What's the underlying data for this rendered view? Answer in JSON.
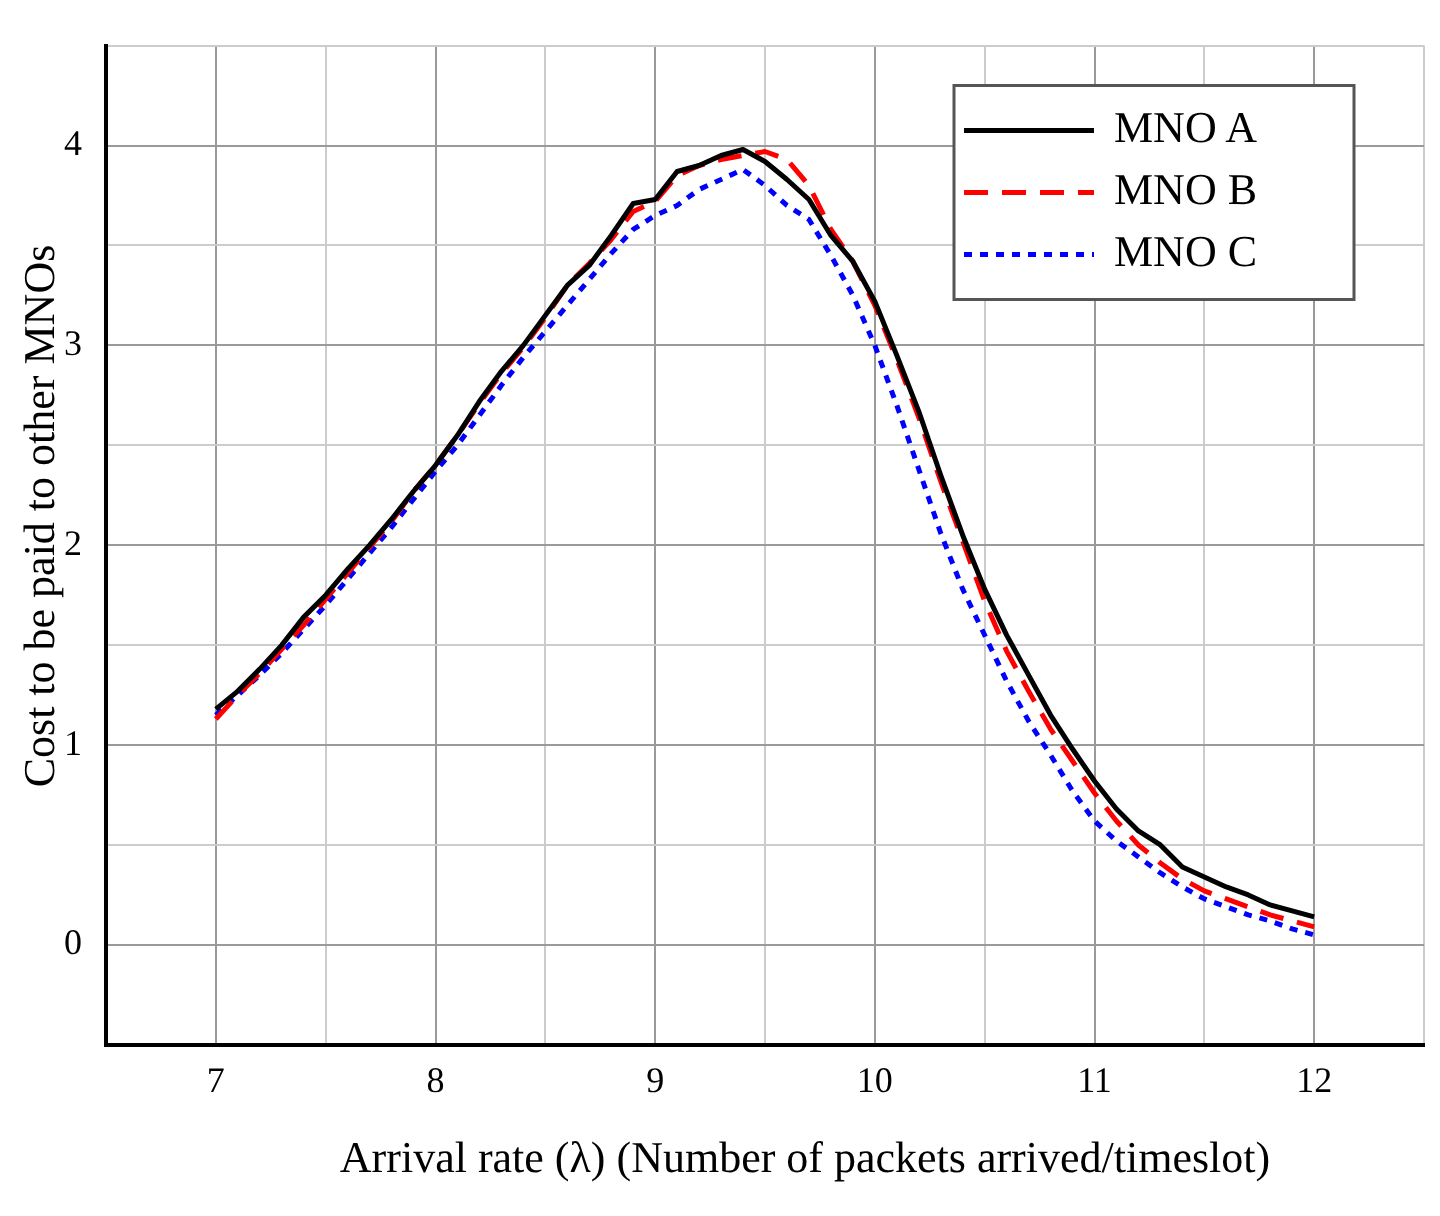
{
  "chart_data": {
    "type": "line",
    "xlabel": "Arrival rate (λ) (Number of packets arrived/timeslot)",
    "ylabel": "Cost to be paid to other MNOs",
    "x": [
      7,
      7.1,
      7.2,
      7.3,
      7.4,
      7.5,
      7.6,
      7.7,
      7.8,
      7.9,
      8,
      8.1,
      8.2,
      8.3,
      8.4,
      8.5,
      8.6,
      8.7,
      8.8,
      8.9,
      9,
      9.1,
      9.2,
      9.3,
      9.4,
      9.5,
      9.6,
      9.7,
      9.8,
      9.9,
      10,
      10.1,
      10.2,
      10.3,
      10.4,
      10.5,
      10.6,
      10.7,
      10.8,
      10.9,
      11,
      11.1,
      11.2,
      11.3,
      11.4,
      11.5,
      11.6,
      11.7,
      11.8,
      11.9,
      12
    ],
    "series": [
      {
        "name": "MNO A",
        "color": "#000000",
        "line_style": "solid",
        "values": [
          1.18,
          1.27,
          1.38,
          1.5,
          1.64,
          1.75,
          1.88,
          2.0,
          2.13,
          2.27,
          2.4,
          2.55,
          2.72,
          2.87,
          3.0,
          3.15,
          3.3,
          3.4,
          3.55,
          3.71,
          3.73,
          3.87,
          3.9,
          3.95,
          3.98,
          3.92,
          3.83,
          3.73,
          3.55,
          3.42,
          3.22,
          2.95,
          2.67,
          2.35,
          2.05,
          1.78,
          1.55,
          1.35,
          1.15,
          0.98,
          0.82,
          0.68,
          0.57,
          0.5,
          0.39,
          0.34,
          0.29,
          0.25,
          0.2,
          0.17,
          0.14
        ]
      },
      {
        "name": "MNO B",
        "color": "#ff0000",
        "line_style": "dashed",
        "values": [
          1.13,
          1.25,
          1.36,
          1.48,
          1.6,
          1.73,
          1.86,
          1.99,
          2.12,
          2.27,
          2.4,
          2.55,
          2.71,
          2.86,
          2.99,
          3.14,
          3.3,
          3.41,
          3.53,
          3.67,
          3.72,
          3.85,
          3.9,
          3.93,
          3.95,
          3.97,
          3.93,
          3.8,
          3.58,
          3.42,
          3.2,
          2.93,
          2.64,
          2.32,
          2.02,
          1.72,
          1.47,
          1.27,
          1.08,
          0.92,
          0.76,
          0.62,
          0.5,
          0.41,
          0.33,
          0.27,
          0.23,
          0.19,
          0.15,
          0.12,
          0.09
        ]
      },
      {
        "name": "MNO C",
        "color": "#0000ff",
        "line_style": "dotted",
        "values": [
          1.15,
          1.25,
          1.35,
          1.46,
          1.58,
          1.7,
          1.83,
          1.96,
          2.09,
          2.23,
          2.37,
          2.5,
          2.65,
          2.8,
          2.94,
          3.07,
          3.2,
          3.33,
          3.46,
          3.58,
          3.65,
          3.7,
          3.78,
          3.83,
          3.88,
          3.8,
          3.7,
          3.63,
          3.45,
          3.25,
          3.0,
          2.7,
          2.38,
          2.06,
          1.78,
          1.55,
          1.32,
          1.12,
          0.95,
          0.77,
          0.62,
          0.52,
          0.44,
          0.36,
          0.29,
          0.23,
          0.19,
          0.15,
          0.12,
          0.08,
          0.05
        ]
      }
    ],
    "xlim": [
      6.5,
      12.5
    ],
    "xticks": [
      {
        "value": 6.5,
        "label": null
      },
      7,
      {
        "value": 7.5,
        "label": null
      },
      8,
      {
        "value": 8.5,
        "label": null
      },
      9,
      {
        "value": 9.5,
        "label": null
      },
      10,
      {
        "value": 10.5,
        "label": null
      },
      11,
      {
        "value": 11.5,
        "label": null
      },
      12,
      {
        "value": 12.5,
        "label": null
      }
    ],
    "ylim": [
      -0.5,
      4.5
    ],
    "yticks": [
      {
        "value": -0.5,
        "label": null
      },
      0,
      {
        "value": 0.5,
        "label": null
      },
      1,
      {
        "value": 1.5,
        "label": null
      },
      2,
      {
        "value": 2.5,
        "label": null
      },
      3,
      {
        "value": 3.5,
        "label": null
      },
      4,
      {
        "value": 4.5,
        "label": null
      }
    ],
    "grid": true,
    "legend": "top right",
    "marker": "none"
  }
}
